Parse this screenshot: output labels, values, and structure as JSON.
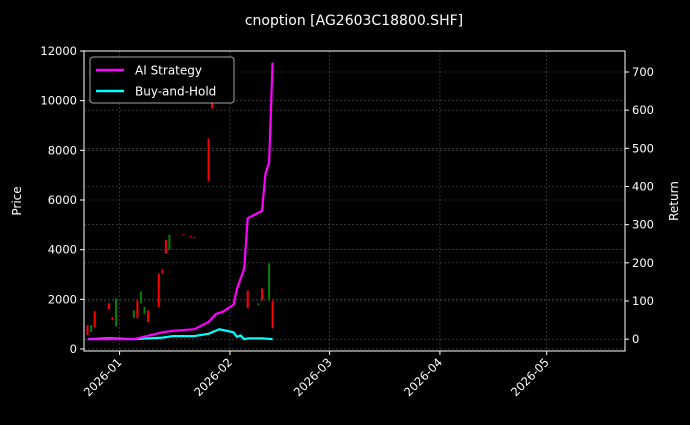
{
  "chart_data": {
    "type": "line",
    "title": "cnoption [AG2603C18800.SHF]",
    "ylabel_left": "Price",
    "ylabel_right": "Return",
    "xlabel": "",
    "x_ticks": [
      "2026-01",
      "2026-02",
      "2026-03",
      "2026-04",
      "2026-05"
    ],
    "xlim": [
      "2025-12-22",
      "2026-05-23"
    ],
    "ylim_left": [
      -80,
      12000
    ],
    "yticks_left": [
      0,
      2000,
      4000,
      6000,
      8000,
      10000,
      12000
    ],
    "ylim_right": [
      -31,
      755
    ],
    "yticks_right": [
      0,
      100,
      200,
      300,
      400,
      500,
      600,
      700
    ],
    "grid": true,
    "legend_placement": "top-left",
    "colors": {
      "background": "#000000",
      "up": "#008000",
      "down": "#ff0000",
      "strategy": "#ff00ff",
      "buy_hold": "#00ffff",
      "grid": "#555555"
    },
    "candles": [
      {
        "date": "2025-12-23",
        "open": 960,
        "close": 560
      },
      {
        "date": "2025-12-24",
        "open": 680,
        "close": 960
      },
      {
        "date": "2025-12-25",
        "open": 1520,
        "close": 880
      },
      {
        "date": "2025-12-29",
        "open": 1840,
        "close": 1600
      },
      {
        "date": "2025-12-30",
        "open": 1280,
        "close": 1160
      },
      {
        "date": "2025-12-31",
        "open": 920,
        "close": 2040
      },
      {
        "date": "2026-01-05",
        "open": 1240,
        "close": 1560
      },
      {
        "date": "2026-01-06",
        "open": 1960,
        "close": 1240
      },
      {
        "date": "2026-01-07",
        "open": 1840,
        "close": 2320
      },
      {
        "date": "2026-01-08",
        "open": 1400,
        "close": 1700
      },
      {
        "date": "2026-01-09",
        "open": 1560,
        "close": 1080
      },
      {
        "date": "2026-01-12",
        "open": 3040,
        "close": 1680
      },
      {
        "date": "2026-01-13",
        "open": 3200,
        "close": 3040
      },
      {
        "date": "2026-01-14",
        "open": 4400,
        "close": 3840
      },
      {
        "date": "2026-01-15",
        "open": 4000,
        "close": 4600
      },
      {
        "date": "2026-01-19",
        "open": 4620,
        "close": 4580
      },
      {
        "date": "2026-01-21",
        "open": 4560,
        "close": 4520
      },
      {
        "date": "2026-01-22",
        "open": 4500,
        "close": 4460
      },
      {
        "date": "2026-01-26",
        "open": 8480,
        "close": 6760
      },
      {
        "date": "2026-01-27",
        "open": 11000,
        "close": 9680
      },
      {
        "date": "2026-02-03",
        "open": 4020,
        "close": 3980
      },
      {
        "date": "2026-02-06",
        "open": 2360,
        "close": 1640
      },
      {
        "date": "2026-02-09",
        "open": 1760,
        "close": 1840
      },
      {
        "date": "2026-02-10",
        "open": 2440,
        "close": 1960
      },
      {
        "date": "2026-02-12",
        "open": 1960,
        "close": 3440
      },
      {
        "date": "2026-02-13",
        "open": 1960,
        "close": 840
      }
    ],
    "series": [
      {
        "name": "AI Strategy",
        "x": [
          "2025-12-23",
          "2026-01-05",
          "2026-01-13",
          "2026-01-16",
          "2026-01-22",
          "2026-01-26",
          "2026-01-28",
          "2026-01-30",
          "2026-02-02",
          "2026-02-03",
          "2026-02-05",
          "2026-02-06",
          "2026-02-10",
          "2026-02-11",
          "2026-02-12",
          "2026-02-13"
        ],
        "values": [
          0,
          0,
          18,
          22,
          26,
          45,
          66,
          72,
          90,
          132,
          185,
          317,
          336,
          434,
          463,
          725
        ]
      },
      {
        "name": "Buy-and-Hold",
        "x": [
          "2025-12-23",
          "2025-12-29",
          "2026-01-05",
          "2026-01-13",
          "2026-01-16",
          "2026-01-22",
          "2026-01-26",
          "2026-01-29",
          "2026-01-30",
          "2026-02-02",
          "2026-02-03",
          "2026-02-04",
          "2026-02-05",
          "2026-02-06",
          "2026-02-10",
          "2026-02-13"
        ],
        "values": [
          0,
          2,
          0,
          4,
          8,
          8,
          14,
          26,
          24,
          18,
          6,
          10,
          0,
          2,
          2,
          0
        ]
      }
    ]
  }
}
